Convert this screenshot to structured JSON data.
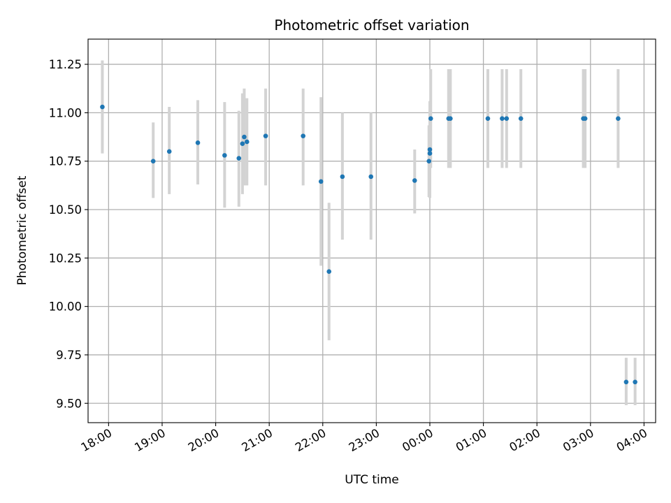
{
  "chart_data": {
    "type": "scatter",
    "title": "Photometric offset variation",
    "xlabel": "UTC time",
    "ylabel": "Photometric offset",
    "x_is_time": true,
    "xlim": [
      "17:37",
      "04:13"
    ],
    "ylim": [
      9.4,
      11.38
    ],
    "yticks": [
      9.5,
      9.75,
      10.0,
      10.25,
      10.5,
      10.75,
      11.0,
      11.25
    ],
    "xticks": [
      "18:00",
      "19:00",
      "20:00",
      "21:00",
      "22:00",
      "23:00",
      "00:00",
      "01:00",
      "02:00",
      "03:00",
      "04:00"
    ],
    "grid": true,
    "colors": {
      "points": "#1f77b4",
      "errorbars": "#d3d3d3"
    },
    "points": [
      {
        "t": "17:53",
        "y": 11.03,
        "ylo": 10.79,
        "yhi": 11.27
      },
      {
        "t": "18:50",
        "y": 10.75,
        "ylo": 10.56,
        "yhi": 10.95
      },
      {
        "t": "19:08",
        "y": 10.8,
        "ylo": 10.58,
        "yhi": 11.03
      },
      {
        "t": "19:40",
        "y": 10.845,
        "ylo": 10.63,
        "yhi": 11.065
      },
      {
        "t": "20:10",
        "y": 10.78,
        "ylo": 10.51,
        "yhi": 11.055
      },
      {
        "t": "20:26",
        "y": 10.765,
        "ylo": 10.515,
        "yhi": 11.01
      },
      {
        "t": "20:30",
        "y": 10.84,
        "ylo": 10.58,
        "yhi": 11.1
      },
      {
        "t": "20:32",
        "y": 10.875,
        "ylo": 10.625,
        "yhi": 11.125
      },
      {
        "t": "20:35",
        "y": 10.85,
        "ylo": 10.625,
        "yhi": 11.075
      },
      {
        "t": "20:56",
        "y": 10.88,
        "ylo": 10.625,
        "yhi": 11.125
      },
      {
        "t": "21:38",
        "y": 10.88,
        "ylo": 10.625,
        "yhi": 11.125
      },
      {
        "t": "21:58",
        "y": 10.645,
        "ylo": 10.21,
        "yhi": 11.08
      },
      {
        "t": "22:07",
        "y": 10.18,
        "ylo": 9.825,
        "yhi": 10.535
      },
      {
        "t": "22:22",
        "y": 10.67,
        "ylo": 10.345,
        "yhi": 11.0
      },
      {
        "t": "22:54",
        "y": 10.67,
        "ylo": 10.345,
        "yhi": 11.0
      },
      {
        "t": "23:43",
        "y": 10.65,
        "ylo": 10.48,
        "yhi": 10.81
      },
      {
        "t": "23:59",
        "y": 10.75,
        "ylo": 10.565,
        "yhi": 10.935
      },
      {
        "t": "00:00",
        "y": 10.79,
        "ylo": 10.56,
        "yhi": 11.06
      },
      {
        "t": "00:00",
        "y": 10.81,
        "ylo": 10.6,
        "yhi": 11.02
      },
      {
        "t": "00:01",
        "y": 10.97,
        "ylo": 10.715,
        "yhi": 11.225
      },
      {
        "t": "00:21",
        "y": 10.97,
        "ylo": 10.715,
        "yhi": 11.225
      },
      {
        "t": "00:23",
        "y": 10.97,
        "ylo": 10.715,
        "yhi": 11.225
      },
      {
        "t": "01:05",
        "y": 10.97,
        "ylo": 10.715,
        "yhi": 11.225
      },
      {
        "t": "01:21",
        "y": 10.97,
        "ylo": 10.715,
        "yhi": 11.225
      },
      {
        "t": "01:26",
        "y": 10.97,
        "ylo": 10.715,
        "yhi": 11.225
      },
      {
        "t": "01:42",
        "y": 10.97,
        "ylo": 10.715,
        "yhi": 11.225
      },
      {
        "t": "02:52",
        "y": 10.97,
        "ylo": 10.715,
        "yhi": 11.225
      },
      {
        "t": "02:54",
        "y": 10.97,
        "ylo": 10.715,
        "yhi": 11.225
      },
      {
        "t": "03:31",
        "y": 10.97,
        "ylo": 10.715,
        "yhi": 11.225
      },
      {
        "t": "03:40",
        "y": 9.61,
        "ylo": 9.49,
        "yhi": 9.735
      },
      {
        "t": "03:50",
        "y": 9.61,
        "ylo": 9.49,
        "yhi": 9.735
      }
    ]
  }
}
